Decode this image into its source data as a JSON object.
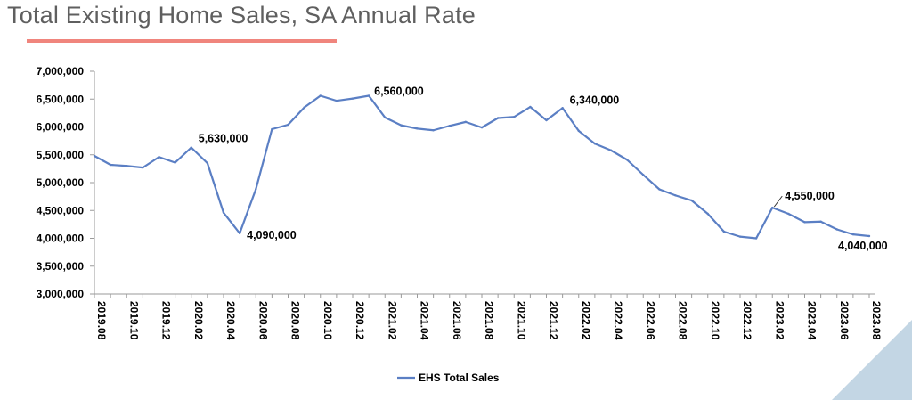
{
  "title": "Total Existing Home Sales, SA Annual Rate",
  "colors": {
    "line": "#5b7fc4",
    "title_bar": "#f0857d",
    "corner": "#c3d6e4",
    "axis": "#9a9a9a"
  },
  "chart_data": {
    "type": "line",
    "title": "Total Existing Home Sales, SA Annual Rate",
    "xlabel": "",
    "ylabel": "",
    "ylim": [
      3000000,
      7000000
    ],
    "y_ticks": [
      3000000,
      3500000,
      4000000,
      4500000,
      5000000,
      5500000,
      6000000,
      6500000,
      7000000
    ],
    "y_tick_labels": [
      "3,000,000",
      "3,500,000",
      "4,000,000",
      "4,500,000",
      "5,000,000",
      "5,500,000",
      "6,000,000",
      "6,500,000",
      "7,000,000"
    ],
    "x_tick_labels": [
      "2019.08",
      "2019.10",
      "2019.12",
      "2020.02",
      "2020.04",
      "2020.06",
      "2020.08",
      "2020.10",
      "2020.12",
      "2021.02",
      "2021.04",
      "2021.06",
      "2021.08",
      "2021.10",
      "2021.12",
      "2022.02",
      "2022.04",
      "2022.06",
      "2022.08",
      "2022.10",
      "2022.12",
      "2023.02",
      "2023.04",
      "2023.06",
      "2023.08"
    ],
    "grid": false,
    "legend_position": "bottom",
    "series": [
      {
        "name": "EHS Total Sales",
        "values": [
          5480000,
          5320000,
          5300000,
          5270000,
          5460000,
          5360000,
          5630000,
          5350000,
          4460000,
          4090000,
          4880000,
          5960000,
          6040000,
          6350000,
          6560000,
          6470000,
          6510000,
          6560000,
          6170000,
          6030000,
          5970000,
          5940000,
          6020000,
          6090000,
          5990000,
          6160000,
          6180000,
          6360000,
          6120000,
          6340000,
          5930000,
          5700000,
          5580000,
          5410000,
          5140000,
          4880000,
          4770000,
          4680000,
          4440000,
          4120000,
          4030000,
          4000000,
          4550000,
          4440000,
          4290000,
          4300000,
          4160000,
          4070000,
          4040000
        ]
      }
    ],
    "annotations": [
      {
        "text": "5,630,000",
        "index": 6
      },
      {
        "text": "4,090,000",
        "index": 9
      },
      {
        "text": "6,560,000",
        "index": 17
      },
      {
        "text": "6,340,000",
        "index": 29
      },
      {
        "text": "4,550,000",
        "index": 42
      },
      {
        "text": "4,040,000",
        "index": 48
      }
    ]
  }
}
